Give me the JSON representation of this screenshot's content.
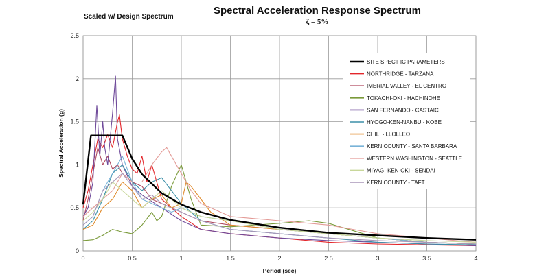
{
  "chart_data": {
    "type": "line",
    "title": "Spectral Acceleration Response Spectrum",
    "subtitle": "ζ = 5%",
    "note": "Scaled w/ Design Spectrum",
    "xlabel": "Period (sec)",
    "ylabel": "Spectral Acceleration (g)",
    "xlim": [
      0,
      4
    ],
    "ylim": [
      0,
      2.5
    ],
    "xticks": [
      0,
      0.5,
      1,
      1.5,
      2,
      2.5,
      3,
      3.5,
      4
    ],
    "yticks": [
      0,
      0.5,
      1,
      1.5,
      2,
      2.5
    ],
    "xtick_labels": [
      "0",
      "0.5",
      "1",
      "1.5",
      "2",
      "2.5",
      "3",
      "3.5",
      "4"
    ],
    "ytick_labels": [
      "0",
      "0.5",
      "1",
      "1.5",
      "2",
      "2.5"
    ],
    "grid": true,
    "legend_position": "right",
    "series": [
      {
        "name": "SITE SPECIFIC PARAMETERS",
        "color": "#000000",
        "x": [
          0,
          0.08,
          0.4,
          0.5,
          0.6,
          0.8,
          1.0,
          1.2,
          1.5,
          2.0,
          2.5,
          3.0,
          3.5,
          4.0
        ],
        "y": [
          0.54,
          1.34,
          1.34,
          1.07,
          0.89,
          0.67,
          0.54,
          0.45,
          0.36,
          0.27,
          0.21,
          0.18,
          0.15,
          0.13
        ]
      },
      {
        "name": "NORTHRIDGE - TARZANA",
        "color": "#e3262b",
        "x": [
          0,
          0.05,
          0.1,
          0.15,
          0.2,
          0.25,
          0.3,
          0.35,
          0.37,
          0.4,
          0.45,
          0.5,
          0.55,
          0.6,
          0.65,
          0.7,
          0.8,
          1.0,
          1.2,
          1.5,
          2.0,
          2.5,
          3.0,
          3.5,
          4.0
        ],
        "y": [
          0.5,
          0.7,
          1.0,
          1.3,
          1.2,
          1.35,
          1.2,
          1.5,
          1.58,
          1.3,
          1.1,
          0.95,
          0.9,
          1.1,
          0.8,
          1.0,
          0.6,
          0.4,
          0.25,
          0.2,
          0.15,
          0.1,
          0.08,
          0.07,
          0.06
        ]
      },
      {
        "name": "IMERIAL VALLEY - EL CENTRO",
        "color": "#b0495f",
        "x": [
          0,
          0.05,
          0.1,
          0.15,
          0.2,
          0.25,
          0.3,
          0.35,
          0.4,
          0.5,
          0.6,
          0.7,
          0.8,
          1.0,
          1.2,
          1.5,
          2.0,
          2.5,
          3.0,
          3.5,
          4.0
        ],
        "y": [
          0.35,
          0.6,
          0.9,
          1.2,
          1.0,
          1.1,
          0.95,
          1.0,
          0.9,
          0.8,
          0.75,
          0.6,
          0.55,
          0.45,
          0.35,
          0.3,
          0.25,
          0.2,
          0.15,
          0.1,
          0.08
        ]
      },
      {
        "name": "TOKACHI-OKI - HACHINOHE",
        "color": "#7a9a3a",
        "x": [
          0,
          0.1,
          0.2,
          0.3,
          0.4,
          0.5,
          0.6,
          0.7,
          0.75,
          0.8,
          0.9,
          1.0,
          1.1,
          1.2,
          1.5,
          2.0,
          2.3,
          2.5,
          3.0,
          3.5,
          4.0
        ],
        "y": [
          0.12,
          0.13,
          0.18,
          0.25,
          0.22,
          0.2,
          0.3,
          0.45,
          0.35,
          0.4,
          0.75,
          1.0,
          0.6,
          0.3,
          0.28,
          0.32,
          0.35,
          0.32,
          0.15,
          0.1,
          0.08
        ]
      },
      {
        "name": "SAN FERNANDO - CASTAIC",
        "color": "#6f4a9a",
        "x": [
          0,
          0.05,
          0.1,
          0.14,
          0.17,
          0.2,
          0.22,
          0.25,
          0.3,
          0.33,
          0.35,
          0.4,
          0.5,
          0.6,
          0.8,
          1.0,
          1.2,
          1.5,
          2.0,
          2.5,
          3.0,
          3.5,
          4.0
        ],
        "y": [
          0.4,
          0.5,
          0.8,
          1.69,
          1.1,
          1.5,
          1.2,
          1.0,
          1.6,
          2.03,
          1.3,
          1.0,
          0.75,
          0.65,
          0.5,
          0.35,
          0.25,
          0.2,
          0.15,
          0.12,
          0.1,
          0.08,
          0.06
        ]
      },
      {
        "name": "HYOGO-KEN-NANBU - KOBE",
        "color": "#3b8fa8",
        "x": [
          0,
          0.1,
          0.2,
          0.3,
          0.4,
          0.5,
          0.6,
          0.7,
          0.8,
          0.9,
          1.0,
          1.2,
          1.5,
          2.0,
          2.5,
          3.0,
          3.5,
          4.0
        ],
        "y": [
          0.25,
          0.35,
          0.6,
          0.9,
          1.0,
          0.8,
          0.7,
          0.8,
          0.85,
          0.7,
          0.55,
          0.35,
          0.25,
          0.2,
          0.15,
          0.1,
          0.08,
          0.07
        ]
      },
      {
        "name": "CHILI - LLOLLEO",
        "color": "#e08a2a",
        "x": [
          0,
          0.1,
          0.2,
          0.3,
          0.4,
          0.5,
          0.6,
          0.7,
          0.8,
          0.9,
          1.0,
          1.05,
          1.1,
          1.2,
          1.3,
          1.5,
          2.0,
          2.5,
          3.0,
          3.5,
          4.0
        ],
        "y": [
          0.25,
          0.3,
          0.5,
          0.6,
          0.8,
          0.7,
          0.5,
          0.6,
          0.65,
          0.5,
          0.55,
          0.8,
          0.75,
          0.6,
          0.45,
          0.3,
          0.25,
          0.2,
          0.15,
          0.1,
          0.08
        ]
      },
      {
        "name": "KERN COUNTY - SANTA BARBARA",
        "color": "#79b3d8",
        "x": [
          0,
          0.1,
          0.2,
          0.3,
          0.4,
          0.5,
          0.6,
          0.7,
          0.8,
          0.9,
          1.0,
          1.2,
          1.5,
          2.0,
          2.5,
          3.0,
          3.5,
          4.0
        ],
        "y": [
          0.3,
          0.4,
          0.7,
          0.9,
          1.1,
          0.8,
          0.6,
          0.55,
          0.5,
          0.45,
          0.5,
          0.4,
          0.35,
          0.25,
          0.2,
          0.15,
          0.1,
          0.08
        ]
      },
      {
        "name": "WESTERN WASHINGTON - SEATTLE",
        "color": "#e39a96",
        "x": [
          0,
          0.1,
          0.2,
          0.3,
          0.4,
          0.5,
          0.6,
          0.7,
          0.8,
          0.85,
          0.9,
          1.0,
          1.1,
          1.2,
          1.5,
          2.0,
          2.5,
          3.0,
          3.5,
          4.0
        ],
        "y": [
          0.4,
          0.5,
          0.6,
          0.7,
          0.9,
          0.8,
          0.8,
          1.0,
          1.15,
          1.2,
          1.1,
          0.9,
          0.7,
          0.55,
          0.4,
          0.35,
          0.3,
          0.2,
          0.15,
          0.1
        ]
      },
      {
        "name": "MIYAGI-KEN-OKI - SENDAI",
        "color": "#c8d79a",
        "x": [
          0,
          0.1,
          0.2,
          0.3,
          0.4,
          0.5,
          0.6,
          0.7,
          0.8,
          0.9,
          1.0,
          1.2,
          1.5,
          2.0,
          2.5,
          3.0,
          3.5,
          4.0
        ],
        "y": [
          0.35,
          0.45,
          0.6,
          0.8,
          0.7,
          0.6,
          0.5,
          0.6,
          0.7,
          0.6,
          0.5,
          0.4,
          0.35,
          0.25,
          0.2,
          0.15,
          0.12,
          0.1
        ]
      },
      {
        "name": "KERN COUNTY - TAFT",
        "color": "#a996b8",
        "x": [
          0,
          0.1,
          0.2,
          0.3,
          0.4,
          0.5,
          0.6,
          0.7,
          0.8,
          0.9,
          1.0,
          1.2,
          1.5,
          2.0,
          2.5,
          3.0,
          3.5,
          4.0
        ],
        "y": [
          0.3,
          0.4,
          0.7,
          0.8,
          0.9,
          0.75,
          0.6,
          0.65,
          0.55,
          0.5,
          0.45,
          0.35,
          0.25,
          0.2,
          0.15,
          0.12,
          0.1,
          0.08
        ]
      }
    ]
  }
}
